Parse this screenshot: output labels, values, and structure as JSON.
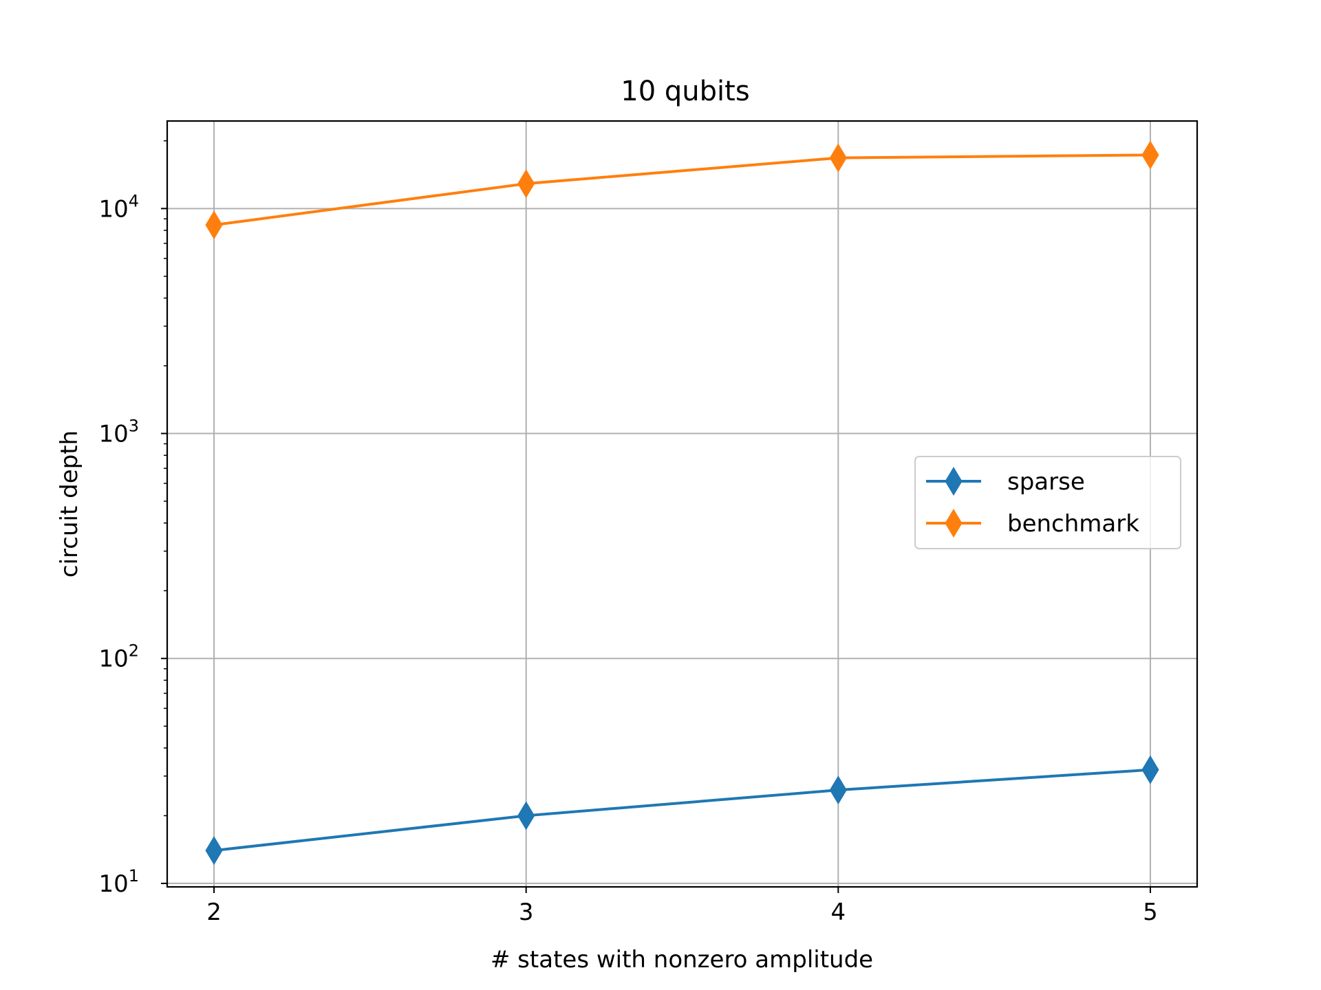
{
  "chart_data": {
    "type": "line",
    "title": "10 qubits",
    "xlabel": "# states with nonzero amplitude",
    "ylabel": "circuit depth",
    "x": [
      2,
      3,
      4,
      5
    ],
    "x_ticks": [
      "2",
      "3",
      "4",
      "5"
    ],
    "y_scale": "log",
    "y_ticks": [
      {
        "value": 10,
        "base": "10",
        "exp": "1"
      },
      {
        "value": 100,
        "base": "10",
        "exp": "2"
      },
      {
        "value": 1000,
        "base": "10",
        "exp": "3"
      },
      {
        "value": 10000,
        "base": "10",
        "exp": "4"
      }
    ],
    "xlim": [
      1.85,
      5.15
    ],
    "ylim": [
      9.65,
      24500
    ],
    "grid": true,
    "legend_position": "center-right",
    "marker": "diamond",
    "series": [
      {
        "name": "sparse",
        "color": "#1f77b4",
        "values": [
          14,
          20,
          26,
          32
        ]
      },
      {
        "name": "benchmark",
        "color": "#ff7f0e",
        "values": [
          8450,
          12900,
          16800,
          17300
        ]
      }
    ]
  }
}
